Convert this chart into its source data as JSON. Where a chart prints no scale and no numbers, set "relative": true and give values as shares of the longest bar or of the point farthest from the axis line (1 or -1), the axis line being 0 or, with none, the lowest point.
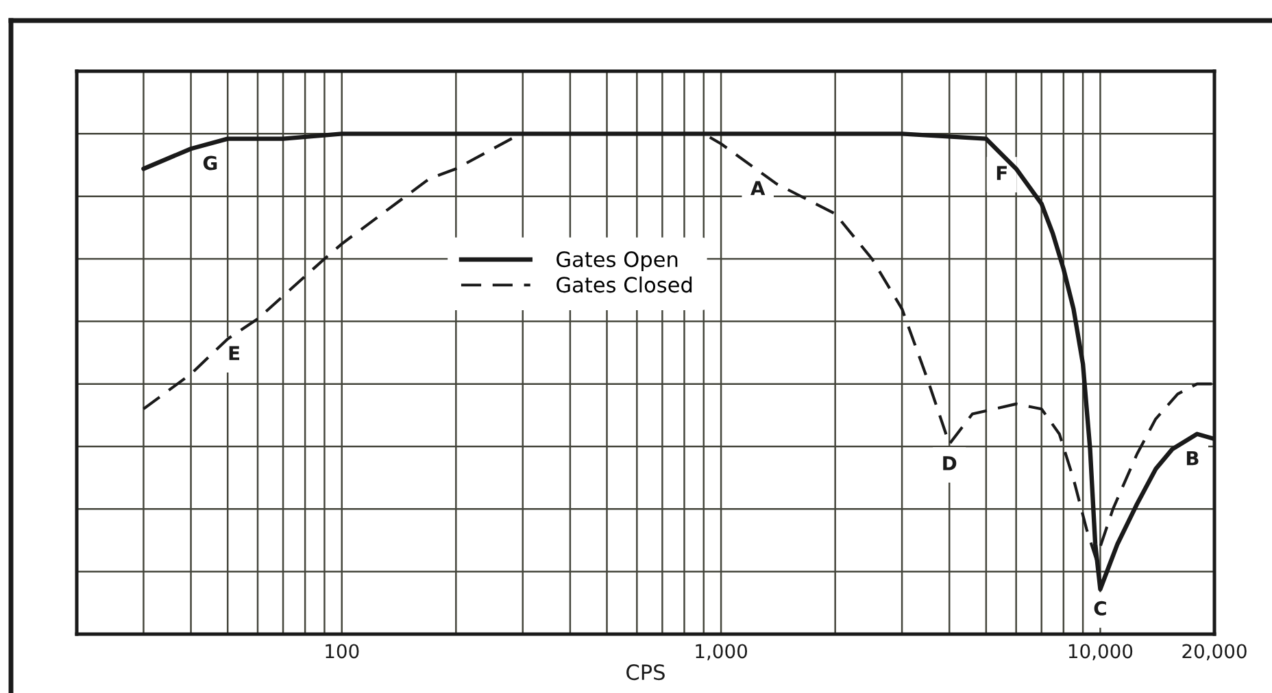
{
  "chart_data": {
    "type": "line",
    "relative": true,
    "log": "x",
    "xlabel": "CPS",
    "xlim": [
      20,
      20000
    ],
    "xticks": [
      100,
      {
        "value": 1000,
        "label": "1,000"
      },
      {
        "value": 10000,
        "label": "10,000"
      },
      {
        "value": 20000,
        "label": "20,000"
      }
    ],
    "tick_labels": "x",
    "grid": true,
    "legend": "top",
    "marker": "none",
    "series": [
      {
        "name": "Gates Open",
        "color": "#1a1a1a",
        "line_style": "solid",
        "x": [
          30,
          40,
          50,
          70,
          100,
          300,
          1000,
          3000,
          5000,
          6000,
          7000,
          7500,
          8000,
          8500,
          9000,
          9400,
          9700,
          10000,
          11100,
          12500,
          14000,
          15500,
          18000,
          20000
        ],
        "values": [
          0.93,
          0.97,
          0.99,
          0.99,
          1.0,
          1.0,
          1.0,
          1.0,
          0.99,
          0.93,
          0.86,
          0.8,
          0.73,
          0.65,
          0.54,
          0.37,
          0.18,
          0.09,
          0.18,
          0.26,
          0.33,
          0.37,
          0.4,
          0.39
        ]
      },
      {
        "name": "Gates Closed",
        "color": "#1a1a1a",
        "line_style": "dashed",
        "x": [
          30,
          40,
          50,
          60,
          90,
          100,
          170,
          200,
          280,
          300,
          900,
          1000,
          1400,
          2000,
          2500,
          3000,
          3500,
          4000,
          4600,
          6000,
          7000,
          7800,
          8500,
          9200,
          9750,
          10800,
          12500,
          14000,
          16000,
          18000,
          20000
        ],
        "values": [
          0.45,
          0.52,
          0.59,
          0.63,
          0.75,
          0.78,
          0.91,
          0.93,
          0.99,
          1.0,
          1.0,
          0.98,
          0.9,
          0.84,
          0.75,
          0.65,
          0.51,
          0.38,
          0.44,
          0.46,
          0.45,
          0.4,
          0.31,
          0.21,
          0.15,
          0.25,
          0.36,
          0.43,
          0.48,
          0.5,
          0.5
        ]
      }
    ],
    "annotations": [
      {
        "text": "G",
        "x": 45,
        "y": 0.98
      },
      {
        "text": "E",
        "x": 52,
        "y": 0.6
      },
      {
        "text": "A",
        "x": 1250,
        "y": 0.93
      },
      {
        "text": "F",
        "x": 5500,
        "y": 0.96
      },
      {
        "text": "D",
        "x": 4000,
        "y": 0.38
      },
      {
        "text": "C",
        "x": 10000,
        "y": 0.09
      },
      {
        "text": "B",
        "x": 17500,
        "y": 0.39
      }
    ]
  }
}
